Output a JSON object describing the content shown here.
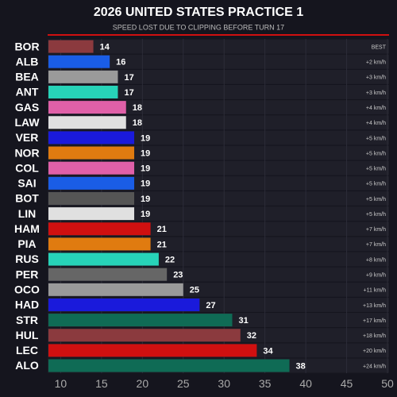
{
  "chart_data": {
    "type": "hbar",
    "title": "2026 UNITED STATES PRACTICE 1",
    "subtitle": "SPEED LOST DUE TO CLIPPING BEFORE TURN 17",
    "categories": [
      "BOR",
      "ALB",
      "BEA",
      "ANT",
      "GAS",
      "LAW",
      "VER",
      "NOR",
      "COL",
      "SAI",
      "BOT",
      "LIN",
      "HAM",
      "PIA",
      "RUS",
      "PER",
      "OCO",
      "HAD",
      "STR",
      "HUL",
      "LEC",
      "ALO"
    ],
    "values": [
      14,
      16,
      17,
      17,
      18,
      18,
      19,
      19,
      19,
      19,
      19,
      19,
      21,
      21,
      22,
      23,
      25,
      27,
      31,
      32,
      34,
      38
    ],
    "colors": [
      "#8b3a3e",
      "#1a5de6",
      "#9a9a9a",
      "#27d3b8",
      "#e060a8",
      "#e0e0e0",
      "#1a1adb",
      "#e07b10",
      "#e060a8",
      "#1a5de6",
      "#555555",
      "#e0e0e0",
      "#d01010",
      "#e07b10",
      "#27d3b8",
      "#666666",
      "#9a9a9a",
      "#1a1adb",
      "#0f6b55",
      "#8b3a3e",
      "#d01010",
      "#0f6b55"
    ],
    "annotations": [
      "BEST",
      "+2 km/h",
      "+3 km/h",
      "+3 km/h",
      "+4 km/h",
      "+4 km/h",
      "+5 km/h",
      "+5 km/h",
      "+5 km/h",
      "+5 km/h",
      "+5 km/h",
      "+5 km/h",
      "+7 km/h",
      "+7 km/h",
      "+8 km/h",
      "+9 km/h",
      "+11 km/h",
      "+13 km/h",
      "+17 km/h",
      "+18 km/h",
      "+20 km/h",
      "+24 km/h"
    ],
    "xlim": [
      8.5,
      50
    ],
    "xticks": [
      10,
      15,
      20,
      25,
      30,
      35,
      40,
      45,
      50
    ]
  }
}
